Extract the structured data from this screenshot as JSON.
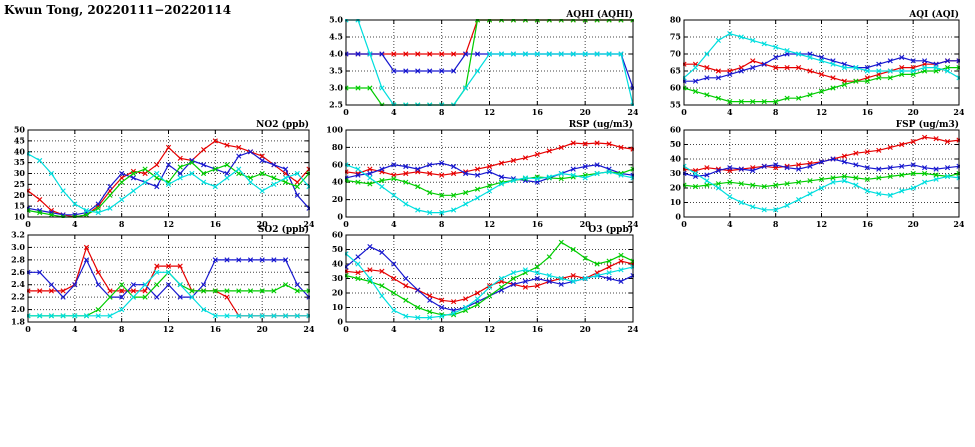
{
  "page": {
    "title": "Kwun Tong, 20220111−20220114"
  },
  "colors": {
    "red": "#e60000",
    "blue": "#1717cf",
    "green": "#00cc00",
    "cyan": "#00dede",
    "grid": "#444444",
    "axis": "#000000"
  },
  "chart_data": [
    {
      "id": "aqhi",
      "type": "line",
      "title": "AQHI (AQHI)",
      "xlabel": "",
      "ylabel": "",
      "xlim": [
        0,
        24
      ],
      "xticks": [
        0,
        4,
        8,
        12,
        16,
        20,
        24
      ],
      "x_start": 0,
      "x_step": 1,
      "ylim": [
        2.5,
        5.0
      ],
      "yticks": [
        2.5,
        3.0,
        3.5,
        4.0,
        4.5,
        5.0
      ],
      "ytick_labels": [
        "2.5",
        "3.0",
        "3.5",
        "4.0",
        "4.5",
        "5.0"
      ],
      "grid": true,
      "legend": "none",
      "series": [
        {
          "name": "red",
          "color": "#e60000",
          "values": [
            4,
            4,
            4,
            4,
            4,
            4,
            4,
            4,
            4,
            4,
            4,
            5,
            5,
            5,
            5,
            5,
            5,
            5,
            5,
            5,
            5,
            5,
            5,
            5,
            5
          ]
        },
        {
          "name": "blue",
          "color": "#1717cf",
          "values": [
            4,
            4,
            4,
            4,
            3.5,
            3.5,
            3.5,
            3.5,
            3.5,
            3.5,
            4,
            4,
            4,
            4,
            4,
            4,
            4,
            4,
            4,
            4,
            4,
            4,
            4,
            4,
            3
          ]
        },
        {
          "name": "green",
          "color": "#00cc00",
          "values": [
            3,
            3,
            3,
            2.5,
            2.5,
            2.5,
            2.5,
            2.5,
            2.5,
            2.5,
            3,
            5,
            5,
            5,
            5,
            5,
            5,
            5,
            5,
            5,
            5,
            5,
            5,
            5,
            5
          ]
        },
        {
          "name": "cyan",
          "color": "#00dede",
          "values": [
            5,
            5,
            4,
            3,
            2.5,
            2.5,
            2.5,
            2.5,
            2.5,
            2.5,
            3,
            3.5,
            4,
            4,
            4,
            4,
            4,
            4,
            4,
            4,
            4,
            4,
            4,
            4,
            2.5
          ]
        }
      ]
    },
    {
      "id": "aqi",
      "type": "line",
      "title": "AQI (AQI)",
      "xlabel": "",
      "ylabel": "",
      "xlim": [
        0,
        24
      ],
      "xticks": [
        0,
        4,
        8,
        12,
        16,
        20,
        24
      ],
      "x_start": 0,
      "x_step": 1,
      "ylim": [
        55,
        80
      ],
      "yticks": [
        55,
        60,
        65,
        70,
        75,
        80
      ],
      "ytick_labels": [
        "55",
        "60",
        "65",
        "70",
        "75",
        "80"
      ],
      "grid": true,
      "legend": "none",
      "series": [
        {
          "name": "red",
          "color": "#e60000",
          "values": [
            67,
            67,
            66,
            65,
            65,
            66,
            68,
            67,
            66,
            66,
            66,
            65,
            64,
            63,
            62,
            62,
            63,
            64,
            65,
            66,
            66,
            67,
            67,
            68,
            68
          ]
        },
        {
          "name": "blue",
          "color": "#1717cf",
          "values": [
            62,
            62,
            63,
            63,
            64,
            65,
            66,
            67,
            69,
            70,
            70,
            70,
            69,
            68,
            67,
            66,
            66,
            67,
            68,
            69,
            68,
            68,
            67,
            68,
            68
          ]
        },
        {
          "name": "green",
          "color": "#00cc00",
          "values": [
            60,
            59,
            58,
            57,
            56,
            56,
            56,
            56,
            56,
            57,
            57,
            58,
            59,
            60,
            61,
            62,
            62,
            63,
            63,
            64,
            64,
            65,
            65,
            66,
            66
          ]
        },
        {
          "name": "cyan",
          "color": "#00dede",
          "values": [
            63,
            66,
            70,
            74,
            76,
            75,
            74,
            73,
            72,
            71,
            70,
            69,
            68,
            67,
            66,
            66,
            65,
            65,
            65,
            65,
            65,
            66,
            66,
            65,
            63
          ]
        }
      ]
    },
    {
      "id": "no2",
      "type": "line",
      "title": "NO2 (ppb)",
      "xlabel": "",
      "ylabel": "",
      "xlim": [
        0,
        24
      ],
      "xticks": [
        0,
        4,
        8,
        12,
        16,
        20,
        24
      ],
      "x_start": 0,
      "x_step": 1,
      "ylim": [
        10,
        50
      ],
      "yticks": [
        10,
        15,
        20,
        25,
        30,
        35,
        40,
        45,
        50
      ],
      "ytick_labels": [
        "10",
        "15",
        "20",
        "25",
        "30",
        "35",
        "40",
        "45",
        "50"
      ],
      "grid": true,
      "legend": "none",
      "series": [
        {
          "name": "red",
          "color": "#e60000",
          "values": [
            22,
            18,
            13,
            11,
            10,
            11,
            15,
            22,
            28,
            31,
            30,
            34,
            42,
            37,
            36,
            41,
            45,
            43,
            42,
            40,
            38,
            34,
            30,
            26,
            32
          ]
        },
        {
          "name": "blue",
          "color": "#1717cf",
          "values": [
            14,
            13,
            12,
            11,
            11,
            12,
            16,
            24,
            30,
            28,
            26,
            24,
            34,
            30,
            36,
            34,
            32,
            30,
            38,
            40,
            36,
            34,
            32,
            20,
            14
          ]
        },
        {
          "name": "green",
          "color": "#00cc00",
          "values": [
            13,
            12,
            11,
            10,
            10,
            11,
            14,
            20,
            26,
            30,
            32,
            28,
            26,
            33,
            35,
            30,
            32,
            34,
            30,
            28,
            30,
            28,
            26,
            24,
            30
          ]
        },
        {
          "name": "cyan",
          "color": "#00dede",
          "values": [
            39,
            36,
            30,
            22,
            16,
            13,
            12,
            14,
            18,
            22,
            26,
            30,
            25,
            28,
            30,
            26,
            24,
            28,
            32,
            26,
            22,
            25,
            28,
            30,
            24
          ]
        }
      ]
    },
    {
      "id": "rsp",
      "type": "line",
      "title": "RSP (ug/m3)",
      "xlabel": "",
      "ylabel": "",
      "xlim": [
        0,
        24
      ],
      "xticks": [
        0,
        4,
        8,
        12,
        16,
        20,
        24
      ],
      "x_start": 0,
      "x_step": 1,
      "ylim": [
        0,
        100
      ],
      "yticks": [
        0,
        20,
        40,
        60,
        80,
        100
      ],
      "ytick_labels": [
        "0",
        "20",
        "40",
        "60",
        "80",
        "100"
      ],
      "grid": true,
      "legend": "none",
      "series": [
        {
          "name": "red",
          "color": "#e60000",
          "values": [
            52,
            50,
            55,
            52,
            48,
            50,
            52,
            50,
            48,
            50,
            52,
            55,
            58,
            62,
            65,
            68,
            72,
            76,
            80,
            85,
            84,
            85,
            84,
            80,
            78
          ]
        },
        {
          "name": "blue",
          "color": "#1717cf",
          "values": [
            45,
            48,
            50,
            55,
            60,
            58,
            55,
            60,
            62,
            58,
            50,
            48,
            52,
            46,
            44,
            42,
            40,
            45,
            50,
            55,
            58,
            60,
            55,
            50,
            48
          ]
        },
        {
          "name": "green",
          "color": "#00cc00",
          "values": [
            42,
            40,
            38,
            42,
            44,
            40,
            35,
            28,
            25,
            25,
            28,
            32,
            36,
            40,
            42,
            44,
            46,
            45,
            44,
            46,
            48,
            50,
            52,
            50,
            55
          ]
        },
        {
          "name": "cyan",
          "color": "#00dede",
          "values": [
            60,
            55,
            45,
            35,
            25,
            15,
            8,
            5,
            5,
            8,
            15,
            22,
            30,
            38,
            42,
            45,
            44,
            46,
            50,
            48,
            45,
            50,
            52,
            48,
            45
          ]
        }
      ]
    },
    {
      "id": "fsp",
      "type": "line",
      "title": "FSP (ug/m3)",
      "xlabel": "",
      "ylabel": "",
      "xlim": [
        0,
        24
      ],
      "xticks": [
        0,
        4,
        8,
        12,
        16,
        20,
        24
      ],
      "x_start": 0,
      "x_step": 1,
      "ylim": [
        0,
        60
      ],
      "yticks": [
        0,
        10,
        20,
        30,
        40,
        50,
        60
      ],
      "ytick_labels": [
        "0",
        "10",
        "20",
        "30",
        "40",
        "50",
        "60"
      ],
      "grid": true,
      "legend": "none",
      "series": [
        {
          "name": "red",
          "color": "#e60000",
          "values": [
            33,
            32,
            34,
            33,
            32,
            33,
            34,
            35,
            34,
            35,
            36,
            37,
            38,
            40,
            42,
            44,
            45,
            46,
            48,
            50,
            52,
            55,
            54,
            52,
            53
          ]
        },
        {
          "name": "blue",
          "color": "#1717cf",
          "values": [
            30,
            28,
            29,
            32,
            34,
            33,
            32,
            35,
            36,
            34,
            33,
            35,
            38,
            40,
            38,
            36,
            34,
            33,
            34,
            35,
            36,
            34,
            33,
            34,
            35
          ]
        },
        {
          "name": "green",
          "color": "#00cc00",
          "values": [
            22,
            21,
            22,
            23,
            24,
            23,
            22,
            21,
            22,
            23,
            24,
            25,
            26,
            27,
            28,
            27,
            26,
            27,
            28,
            29,
            30,
            30,
            29,
            28,
            30
          ]
        },
        {
          "name": "cyan",
          "color": "#00dede",
          "values": [
            35,
            30,
            25,
            20,
            14,
            10,
            7,
            5,
            5,
            8,
            12,
            16,
            20,
            24,
            25,
            22,
            18,
            16,
            15,
            18,
            20,
            24,
            26,
            28,
            27
          ]
        }
      ]
    },
    {
      "id": "so2",
      "type": "line",
      "title": "SO2 (ppb)",
      "xlabel": "",
      "ylabel": "",
      "xlim": [
        0,
        24
      ],
      "xticks": [
        0,
        4,
        8,
        12,
        16,
        20,
        24
      ],
      "x_start": 0,
      "x_step": 1,
      "ylim": [
        1.8,
        3.2
      ],
      "yticks": [
        1.8,
        2.0,
        2.2,
        2.4,
        2.6,
        2.8,
        3.0,
        3.2
      ],
      "ytick_labels": [
        "1.8",
        "2.0",
        "2.2",
        "2.4",
        "2.6",
        "2.8",
        "3.0",
        "3.2"
      ],
      "grid": true,
      "legend": "none",
      "series": [
        {
          "name": "red",
          "color": "#e60000",
          "values": [
            2.3,
            2.3,
            2.3,
            2.3,
            2.4,
            3.0,
            2.6,
            2.3,
            2.3,
            2.3,
            2.3,
            2.7,
            2.7,
            2.7,
            2.3,
            2.3,
            2.3,
            2.2,
            1.9,
            1.9,
            1.9,
            1.9,
            1.9,
            1.9,
            1.9
          ]
        },
        {
          "name": "blue",
          "color": "#1717cf",
          "values": [
            2.6,
            2.6,
            2.4,
            2.2,
            2.4,
            2.8,
            2.4,
            2.2,
            2.2,
            2.4,
            2.4,
            2.2,
            2.4,
            2.2,
            2.2,
            2.4,
            2.8,
            2.8,
            2.8,
            2.8,
            2.8,
            2.8,
            2.8,
            2.4,
            2.2
          ]
        },
        {
          "name": "green",
          "color": "#00cc00",
          "values": [
            1.9,
            1.9,
            1.9,
            1.9,
            1.9,
            1.9,
            2.0,
            2.2,
            2.4,
            2.2,
            2.2,
            2.4,
            2.6,
            2.4,
            2.3,
            2.3,
            2.3,
            2.3,
            2.3,
            2.3,
            2.3,
            2.3,
            2.4,
            2.3,
            2.3
          ]
        },
        {
          "name": "cyan",
          "color": "#00dede",
          "values": [
            1.9,
            1.9,
            1.9,
            1.9,
            1.9,
            1.9,
            1.9,
            1.9,
            2.0,
            2.2,
            2.4,
            2.6,
            2.6,
            2.4,
            2.2,
            2.0,
            1.9,
            1.9,
            1.9,
            1.9,
            1.9,
            1.9,
            1.9,
            1.9,
            1.9
          ]
        }
      ]
    },
    {
      "id": "o3",
      "type": "line",
      "title": "O3 (ppb)",
      "xlabel": "",
      "ylabel": "",
      "xlim": [
        0,
        24
      ],
      "xticks": [
        0,
        4,
        8,
        12,
        16,
        20,
        24
      ],
      "x_start": 0,
      "x_step": 1,
      "ylim": [
        0,
        60
      ],
      "yticks": [
        0,
        10,
        20,
        30,
        40,
        50,
        60
      ],
      "ytick_labels": [
        "0",
        "10",
        "20",
        "30",
        "40",
        "50",
        "60"
      ],
      "grid": true,
      "legend": "none",
      "series": [
        {
          "name": "red",
          "color": "#e60000",
          "values": [
            35,
            34,
            36,
            35,
            30,
            25,
            22,
            18,
            15,
            14,
            16,
            20,
            25,
            28,
            26,
            24,
            25,
            28,
            30,
            32,
            30,
            34,
            38,
            42,
            40
          ]
        },
        {
          "name": "blue",
          "color": "#1717cf",
          "values": [
            38,
            45,
            52,
            48,
            40,
            30,
            22,
            15,
            10,
            8,
            10,
            14,
            18,
            22,
            26,
            28,
            30,
            28,
            26,
            28,
            30,
            32,
            30,
            28,
            32
          ]
        },
        {
          "name": "green",
          "color": "#00cc00",
          "values": [
            32,
            30,
            28,
            25,
            20,
            15,
            10,
            7,
            5,
            5,
            8,
            12,
            18,
            24,
            30,
            34,
            38,
            45,
            55,
            50,
            44,
            40,
            42,
            46,
            42
          ]
        },
        {
          "name": "cyan",
          "color": "#00dede",
          "values": [
            47,
            40,
            30,
            18,
            8,
            4,
            3,
            3,
            4,
            6,
            10,
            16,
            24,
            30,
            34,
            36,
            34,
            32,
            30,
            28,
            30,
            32,
            34,
            36,
            38
          ]
        }
      ]
    }
  ]
}
